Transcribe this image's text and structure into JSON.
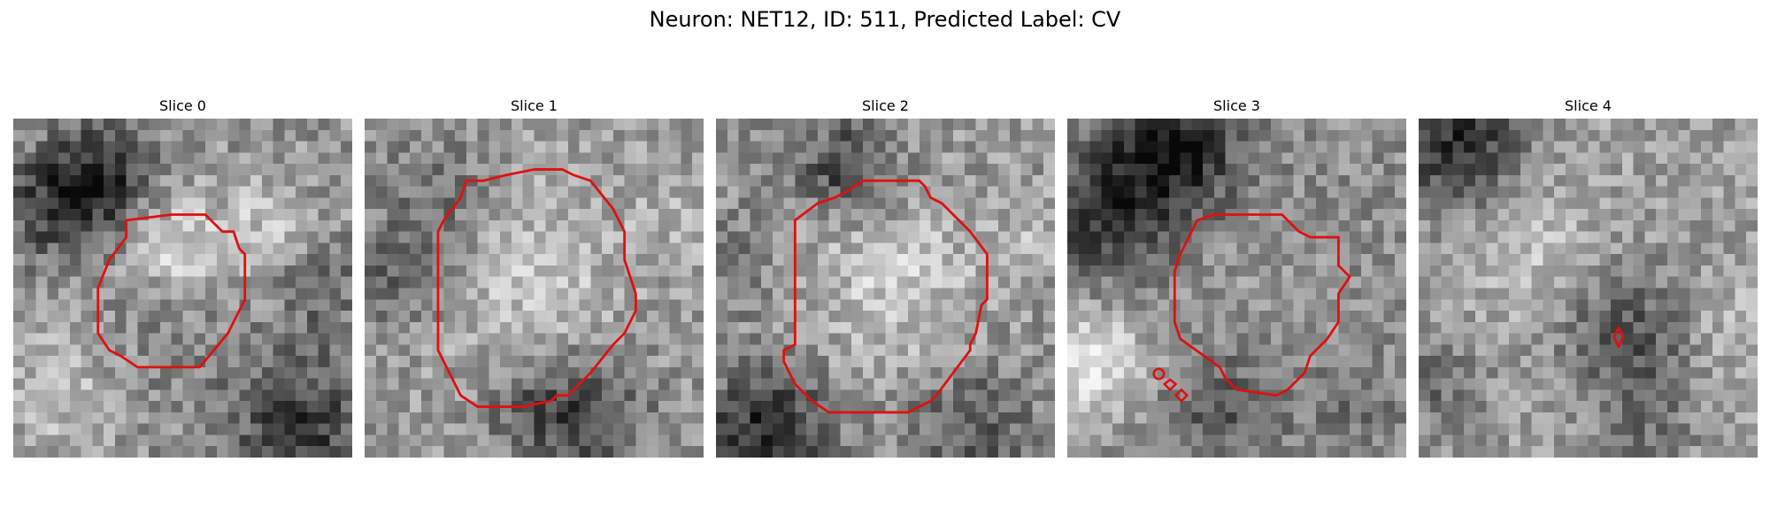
{
  "suptitle": "Neuron: NET12, ID: 511, Predicted Label: CV",
  "panels": [
    {
      "title": "Slice 0"
    },
    {
      "title": "Slice 1"
    },
    {
      "title": "Slice 2"
    },
    {
      "title": "Slice 3"
    },
    {
      "title": "Slice 4"
    }
  ],
  "colors": {
    "contour": "#e01010",
    "colormap": "gray"
  }
}
